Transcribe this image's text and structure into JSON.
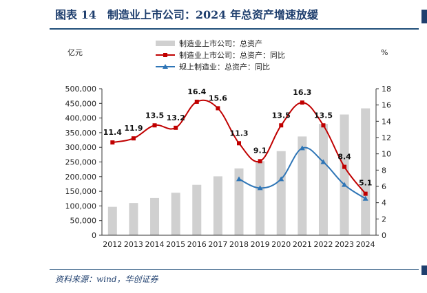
{
  "figure": {
    "title": "图表 14　制造业上市公司：2024 年总资产增速放缓",
    "source": "资料来源：wind，华创证券"
  },
  "chart_data": {
    "type": "bar+line",
    "title": "",
    "categories": [
      "2012",
      "2013",
      "2014",
      "2015",
      "2016",
      "2017",
      "2018",
      "2019",
      "2020",
      "2021",
      "2022",
      "2023",
      "2024"
    ],
    "left_axis": {
      "unit": "亿元",
      "ylim": [
        0,
        500000
      ],
      "ticks": [
        "0",
        "50,000",
        "100,000",
        "150,000",
        "200,000",
        "250,000",
        "300,000",
        "350,000",
        "400,000",
        "450,000",
        "500,000"
      ]
    },
    "right_axis": {
      "unit": "%",
      "ylim": [
        0,
        18
      ],
      "ticks": [
        "0",
        "2",
        "4",
        "6",
        "8",
        "10",
        "12",
        "14",
        "16",
        "18"
      ]
    },
    "series": [
      {
        "name": "制造业上市公司：总资产",
        "type": "bar",
        "axis": "left",
        "color": "#d0d0d0",
        "values": [
          97000,
          110000,
          127000,
          145000,
          172000,
          201000,
          228000,
          253000,
          287000,
          337000,
          380000,
          412000,
          433000
        ]
      },
      {
        "name": "制造业上市公司：总资产：同比",
        "type": "line",
        "axis": "right",
        "color": "#c00000",
        "marker": "square",
        "values": [
          11.4,
          11.9,
          13.5,
          13.2,
          16.4,
          15.6,
          11.3,
          9.1,
          13.5,
          16.3,
          13.5,
          8.4,
          5.1
        ],
        "labels": [
          "11.4",
          "11.9",
          "13.5",
          "13.2",
          "16.4",
          "15.6",
          "11.3",
          "9.1",
          "13.5",
          "16.3",
          "13.5",
          "8.4",
          "5.1"
        ]
      },
      {
        "name": "规上制造业：总资产：同比",
        "type": "line",
        "axis": "right",
        "color": "#2e75b6",
        "marker": "triangle",
        "values": [
          null,
          null,
          null,
          null,
          null,
          null,
          6.9,
          5.8,
          6.9,
          10.7,
          9.0,
          6.2,
          4.5
        ]
      }
    ],
    "legend_position": "top",
    "grid": false
  }
}
